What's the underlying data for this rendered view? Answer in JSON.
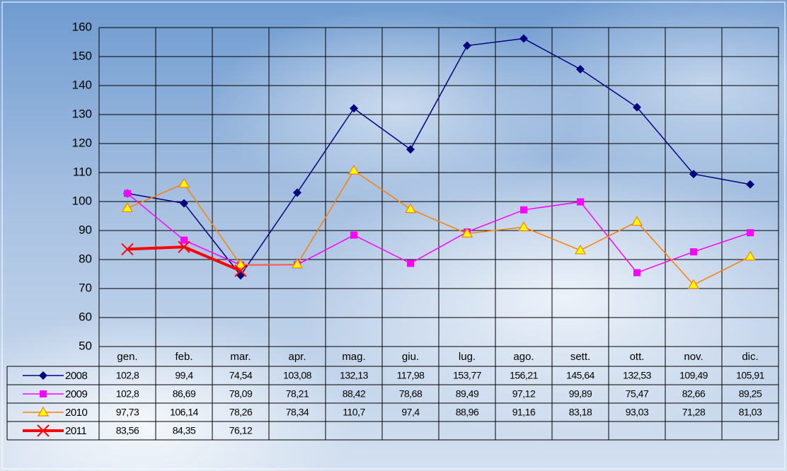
{
  "chart_data": {
    "type": "line",
    "categories": [
      "gen.",
      "feb.",
      "mar.",
      "apr.",
      "mag.",
      "giu.",
      "lug.",
      "ago.",
      "sett.",
      "ott.",
      "nov.",
      "dic."
    ],
    "ylim": [
      50,
      160
    ],
    "yticks": [
      50,
      60,
      70,
      80,
      90,
      100,
      110,
      120,
      130,
      140,
      150,
      160
    ],
    "grid": true,
    "legend": "bottom-left data table",
    "series": [
      {
        "name": "2008",
        "color": "#000080",
        "marker": "diamond",
        "line_width": 1.5,
        "values": [
          102.8,
          99.4,
          74.54,
          103.08,
          132.13,
          117.98,
          153.77,
          156.21,
          145.64,
          132.53,
          109.49,
          105.91
        ],
        "value_labels": [
          "102,8",
          "99,4",
          "74,54",
          "103,08",
          "132,13",
          "117,98",
          "153,77",
          "156,21",
          "145,64",
          "132,53",
          "109,49",
          "105,91"
        ]
      },
      {
        "name": "2009",
        "color": "#ff00ff",
        "marker": "square",
        "line_width": 1.5,
        "values": [
          102.8,
          86.69,
          78.09,
          78.21,
          88.42,
          78.68,
          89.49,
          97.12,
          99.89,
          75.47,
          82.66,
          89.25
        ],
        "value_labels": [
          "102,8",
          "86,69",
          "78,09",
          "78,21",
          "88,42",
          "78,68",
          "89,49",
          "97,12",
          "99,89",
          "75,47",
          "82,66",
          "89,25"
        ]
      },
      {
        "name": "2010",
        "color": "#ff8000",
        "marker": "triangle",
        "marker_fill": "#ffff00",
        "line_width": 1.5,
        "values": [
          97.73,
          106.14,
          78.26,
          78.34,
          110.7,
          97.4,
          88.96,
          91.16,
          83.18,
          93.03,
          71.28,
          81.03
        ],
        "value_labels": [
          "97,73",
          "106,14",
          "78,26",
          "78,34",
          "110,7",
          "97,4",
          "88,96",
          "91,16",
          "83,18",
          "93,03",
          "71,28",
          "81,03"
        ]
      },
      {
        "name": "2011",
        "color": "#ff0000",
        "marker": "x",
        "line_width": 4,
        "values": [
          83.56,
          84.35,
          76.12,
          null,
          null,
          null,
          null,
          null,
          null,
          null,
          null,
          null
        ],
        "value_labels": [
          "83,56",
          "84,35",
          "76,12",
          null,
          null,
          null,
          null,
          null,
          null,
          null,
          null,
          null
        ]
      }
    ]
  }
}
